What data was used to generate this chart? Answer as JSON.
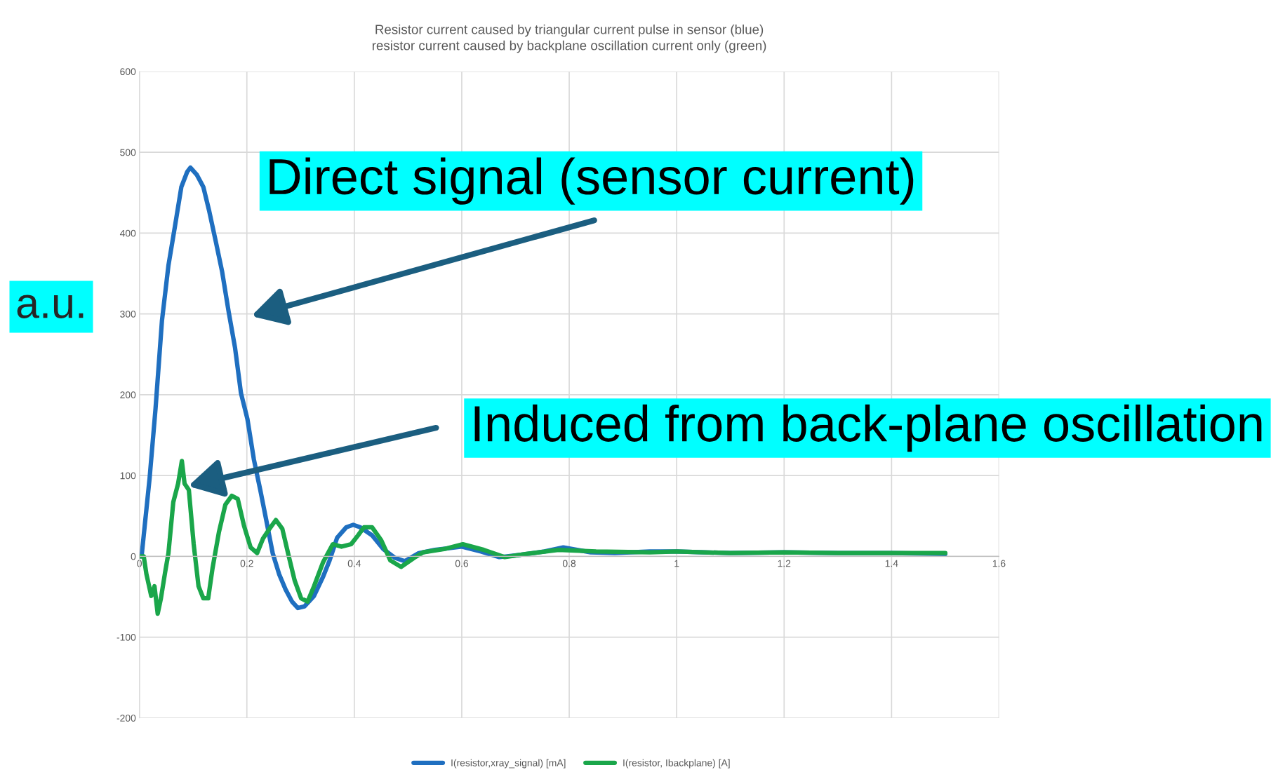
{
  "chart_data": {
    "type": "line",
    "title": "Resistor current caused by triangular current pulse in sensor (blue)\nresistor current caused by backplane oscillation current only (green)",
    "ylabel": "a.u.",
    "xlim": [
      0,
      1.6
    ],
    "xticks": [
      0,
      0.2,
      0.4,
      0.6,
      0.8,
      1,
      1.2,
      1.4,
      1.6
    ],
    "ylim": [
      -200,
      600
    ],
    "yticks": [
      -200,
      -100,
      0,
      100,
      200,
      300,
      400,
      500,
      600
    ],
    "grid": true,
    "legend": "bottom",
    "marker": "none",
    "line_style": "solid",
    "annotations": [
      "Direct signal (sensor current)",
      "Induced from back-plane oscillation"
    ],
    "series": [
      {
        "name": "I(resistor,xray_signal) [mA]",
        "color": "#1f6fc0",
        "x": [
          0,
          0.004,
          0.019,
          0.03,
          0.042,
          0.054,
          0.066,
          0.078,
          0.089,
          0.095,
          0.107,
          0.119,
          0.13,
          0.142,
          0.154,
          0.166,
          0.178,
          0.189,
          0.201,
          0.213,
          0.225,
          0.236,
          0.248,
          0.26,
          0.272,
          0.284,
          0.295,
          0.307,
          0.325,
          0.342,
          0.354,
          0.368,
          0.385,
          0.398,
          0.411,
          0.433,
          0.454,
          0.476,
          0.494,
          0.52,
          0.55,
          0.6,
          0.636,
          0.67,
          0.71,
          0.754,
          0.789,
          0.84,
          0.885,
          0.95,
          1.0,
          1.1,
          1.2,
          1.3,
          1.4,
          1.5
        ],
        "values": [
          0,
          0,
          97,
          183,
          292,
          360,
          408,
          457,
          476,
          481,
          472,
          457,
          427,
          390,
          352,
          303,
          258,
          202,
          170,
          120,
          82,
          45,
          4,
          -22,
          -41,
          -56,
          -64,
          -62,
          -49,
          -25,
          -5,
          23,
          36,
          39,
          36,
          26,
          9,
          -2,
          -6,
          4,
          8,
          12,
          6,
          -1,
          2,
          6,
          11,
          5,
          4,
          6,
          6,
          4,
          5,
          4,
          4,
          3
        ]
      },
      {
        "name": "I(resistor, Ibackplane) [A]",
        "color": "#1aa64a",
        "x": [
          0,
          0.008,
          0.013,
          0.022,
          0.028,
          0.034,
          0.04,
          0.048,
          0.054,
          0.063,
          0.072,
          0.079,
          0.084,
          0.092,
          0.101,
          0.11,
          0.119,
          0.128,
          0.136,
          0.148,
          0.16,
          0.172,
          0.183,
          0.195,
          0.207,
          0.219,
          0.23,
          0.242,
          0.254,
          0.266,
          0.278,
          0.289,
          0.301,
          0.313,
          0.325,
          0.342,
          0.36,
          0.376,
          0.394,
          0.407,
          0.418,
          0.433,
          0.45,
          0.467,
          0.487,
          0.511,
          0.528,
          0.567,
          0.602,
          0.641,
          0.68,
          0.72,
          0.78,
          0.85,
          0.95,
          1.0,
          1.1,
          1.2,
          1.3,
          1.4,
          1.5
        ],
        "values": [
          0,
          0,
          -22,
          -49,
          -37,
          -71,
          -52,
          -19,
          4,
          67,
          90,
          118,
          90,
          82,
          15,
          -37,
          -52,
          -52,
          -15,
          30,
          64,
          75,
          71,
          37,
          11,
          4,
          22,
          34,
          45,
          34,
          0,
          -30,
          -52,
          -56,
          -37,
          -7,
          15,
          12,
          15,
          26,
          36,
          36,
          20,
          -5,
          -13,
          -2,
          5,
          9,
          15,
          8,
          -1,
          3,
          8,
          6,
          5,
          6,
          4,
          5,
          4,
          4,
          4
        ]
      }
    ]
  }
}
